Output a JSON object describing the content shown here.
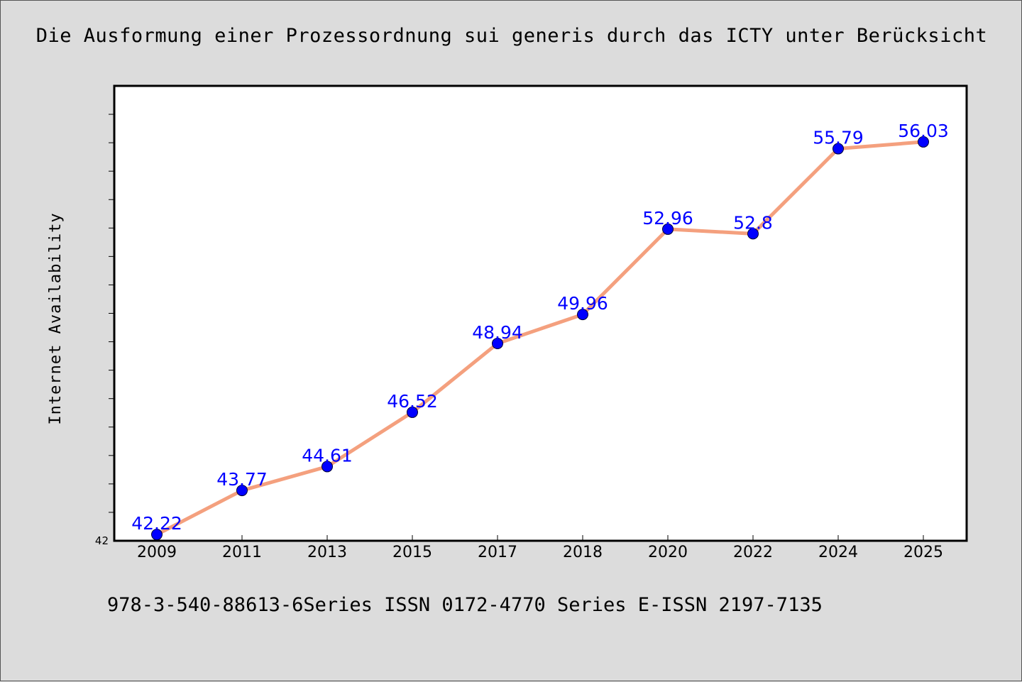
{
  "chart_data": {
    "type": "line",
    "title": "Die Ausformung einer Prozessordnung sui generis durch das ICTY unter Berücksicht",
    "xlabel": "",
    "ylabel": "Internet Availability",
    "categories": [
      "2009",
      "2011",
      "2013",
      "2015",
      "2017",
      "2018",
      "2020",
      "2022",
      "2024",
      "2025"
    ],
    "series": [
      {
        "values": [
          42.22,
          43.77,
          44.61,
          46.52,
          48.94,
          49.96,
          52.96,
          52.8,
          55.79,
          56.03
        ],
        "labels": [
          "42.22",
          "43.77",
          "44.61",
          "46.52",
          "48.94",
          "49.96",
          "52.96",
          "52.8",
          "55.79",
          "56.03"
        ]
      }
    ],
    "ylim": [
      42,
      58
    ],
    "ytick_labels": [
      "42"
    ],
    "grid": false,
    "colors": {
      "line": "#f4a07e",
      "marker": "#0000ff",
      "data_label": "#0000ff",
      "background": "#dcdcdc",
      "plot_background": "#ffffff"
    }
  },
  "footer": {
    "text": "978-3-540-88613-6Series ISSN 0172-4770 Series E-ISSN 2197-7135"
  }
}
